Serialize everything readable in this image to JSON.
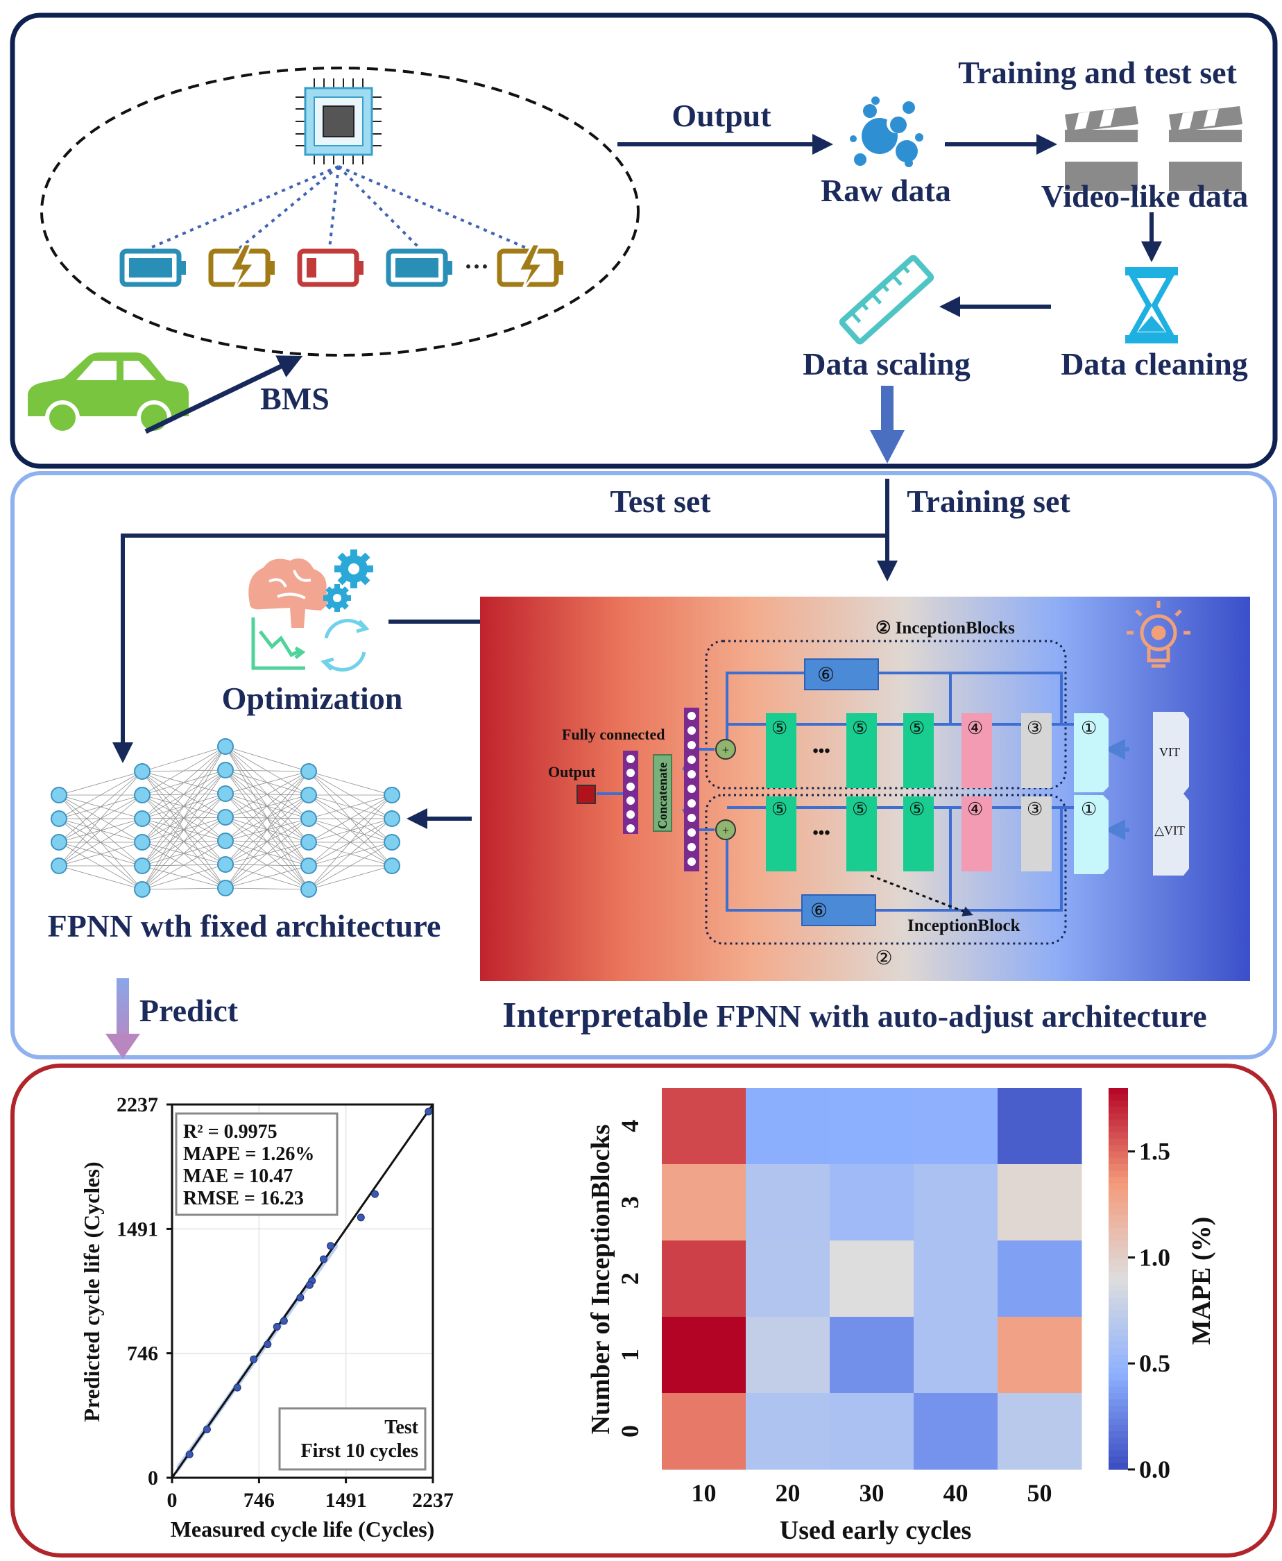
{
  "panel_top": {
    "labels": {
      "output": "Output",
      "raw_data": "Raw data",
      "training_test_set": "Training  and test set",
      "video_like_data": "Video-like data",
      "data_cleaning": "Data cleaning",
      "data_scaling": "Data scaling",
      "bms": "BMS",
      "ellipsis": "···"
    },
    "icons": [
      "chip-icon",
      "battery-full-icon",
      "battery-charging-icon",
      "battery-low-icon",
      "car-icon",
      "bubbles-icon",
      "clapperboard-icon",
      "hourglass-icon",
      "ruler-icon"
    ]
  },
  "panel_middle": {
    "labels": {
      "test_set": "Test set",
      "training_set": "Training set",
      "optimization": "Optimization",
      "fpnn_fixed": "FPNN wth fixed architecture",
      "predict": "Predict",
      "interpretable_title_a": "Interpretable",
      "interpretable_title_b": " FPNN with auto-adjust architecture"
    },
    "network": {
      "inception_blocks_top": "②  InceptionBlocks",
      "inception_block_bottom": "InceptionBlock",
      "block_2_bottom": "②",
      "fully_connected": "Fully connected",
      "output": "Output",
      "concatenate": "Concatenate",
      "vit": "VIT",
      "delta_vit": "△VIT",
      "b1": "①",
      "b3": "③",
      "b4": "④",
      "b5": "⑤",
      "b6": "⑥",
      "dots": "•••",
      "plus": "+"
    },
    "icons": [
      "brain-icon",
      "gears-icon",
      "chart-decline-icon",
      "refresh-icon",
      "lightbulb-icon"
    ]
  },
  "chart_data": [
    {
      "type": "scatter",
      "xlabel": "Measured cycle life (Cycles)",
      "ylabel": "Predicted cycle life (Cycles)",
      "xlim": [
        0,
        2237
      ],
      "ylim": [
        0,
        2237
      ],
      "xticks": [
        "0",
        "746",
        "1491",
        "2237"
      ],
      "yticks": [
        "0",
        "746",
        "1491",
        "2237"
      ],
      "stats": [
        "R² = 0.9975",
        "MAPE = 1.26%",
        "MAE = 10.47",
        "RMSE = 16.23"
      ],
      "legend": [
        "Test",
        "First 10 cycles"
      ],
      "legend_position": "bottom-right",
      "grid": true,
      "points": [
        [
          2200,
          2195
        ],
        [
          1620,
          1560
        ],
        [
          1740,
          1700
        ],
        [
          1360,
          1390
        ],
        [
          960,
          940
        ],
        [
          1200,
          1180
        ],
        [
          820,
          800
        ],
        [
          560,
          540
        ],
        [
          1100,
          1080
        ],
        [
          700,
          710
        ],
        [
          1300,
          1310
        ],
        [
          900,
          905
        ],
        [
          300,
          290
        ],
        [
          150,
          140
        ],
        [
          1180,
          1155
        ]
      ]
    },
    {
      "type": "heatmap",
      "xlabel": "Used early cycles",
      "ylabel": "Number of InceptionBlocks",
      "x_categories": [
        "10",
        "20",
        "30",
        "40",
        "50"
      ],
      "y_categories": [
        "4",
        "3",
        "2",
        "1",
        "0"
      ],
      "values": [
        [
          1.6,
          0.44,
          0.45,
          0.46,
          0.08
        ],
        [
          1.28,
          0.65,
          0.55,
          0.62,
          0.95
        ],
        [
          1.62,
          0.66,
          0.9,
          0.62,
          0.38
        ],
        [
          1.82,
          0.75,
          0.3,
          0.62,
          1.3
        ],
        [
          1.45,
          0.64,
          0.62,
          0.32,
          0.7
        ]
      ],
      "colorbar": {
        "label": "MAPE (%)",
        "range": [
          0.0,
          1.8
        ],
        "ticks": [
          "0.0",
          "0.5",
          "1.0",
          "1.5"
        ],
        "colors": [
          "#3b4cc0",
          "#8db0fe",
          "#dddddd",
          "#f49a7b",
          "#b40426"
        ]
      }
    }
  ]
}
